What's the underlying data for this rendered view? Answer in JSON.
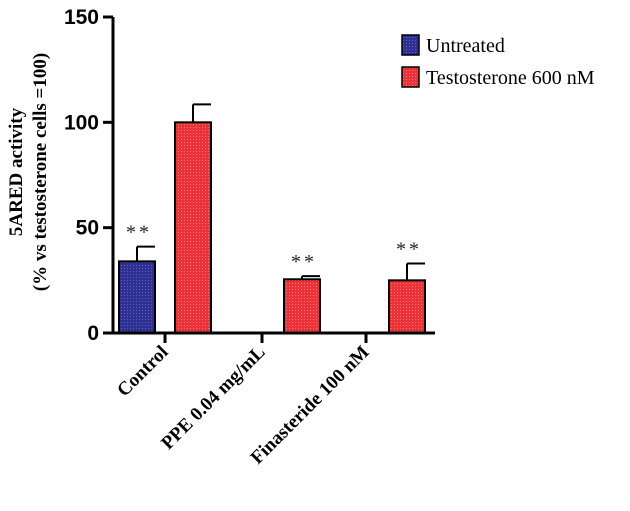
{
  "chart_data": {
    "type": "bar",
    "categories": [
      "Control",
      "PPE 0.04 mg/mL",
      "Finasteride 100 nM"
    ],
    "series": [
      {
        "name": "Untreated",
        "color": "#2e3192",
        "values": [
          34,
          null,
          null
        ],
        "errors": [
          7,
          null,
          null
        ]
      },
      {
        "name": "Testosterone 600 nM",
        "color": "#ed3237",
        "values": [
          100,
          25.5,
          25
        ],
        "errors": [
          8.5,
          1.5,
          8
        ]
      }
    ],
    "annotations": [
      {
        "category": 0,
        "series": 0,
        "text": "**"
      },
      {
        "category": 1,
        "series": 1,
        "text": "**"
      },
      {
        "category": 2,
        "series": 1,
        "text": "**"
      }
    ],
    "ylabel_line1": "5ARED activity",
    "ylabel_line2": "(% vs testosterone cells =100)",
    "ylim": [
      0,
      150
    ],
    "yticks": [
      "0",
      "50",
      "100",
      "150"
    ],
    "legend_position": "top-right",
    "grid": false
  }
}
